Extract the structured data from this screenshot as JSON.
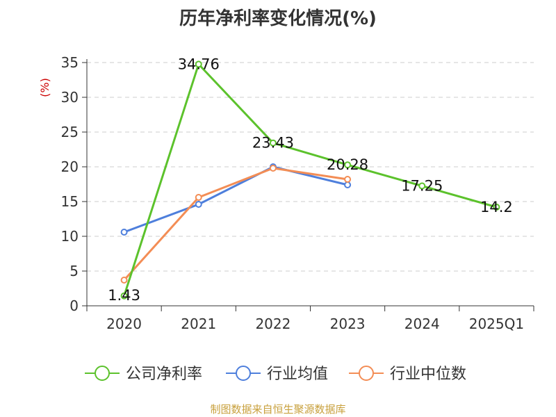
{
  "chart_data": {
    "type": "line",
    "title": "历年净利率变化情况(%)",
    "ylabel": "(%)",
    "xlabel": "",
    "categories": [
      "2020",
      "2021",
      "2022",
      "2023",
      "2024",
      "2025Q1"
    ],
    "ylim": [
      0,
      35
    ],
    "yticks": [
      0,
      5,
      10,
      15,
      20,
      25,
      30,
      35
    ],
    "grid": true,
    "legend_position": "bottom",
    "series": [
      {
        "name": "公司净利率",
        "color": "#5cc22c",
        "values": [
          1.43,
          34.76,
          23.43,
          20.28,
          17.25,
          14.2
        ],
        "labels": [
          "1.43",
          "34.76",
          "23.43",
          "20.28",
          "17.25",
          "14.2"
        ]
      },
      {
        "name": "行业均值",
        "color": "#4e7fdc",
        "values": [
          10.6,
          14.6,
          20.0,
          17.4,
          null,
          null
        ]
      },
      {
        "name": "行业中位数",
        "color": "#f38d55",
        "values": [
          3.7,
          15.6,
          19.8,
          18.2,
          null,
          null
        ]
      }
    ]
  },
  "footer": {
    "source": "制图数据来自恒生聚源数据库"
  }
}
